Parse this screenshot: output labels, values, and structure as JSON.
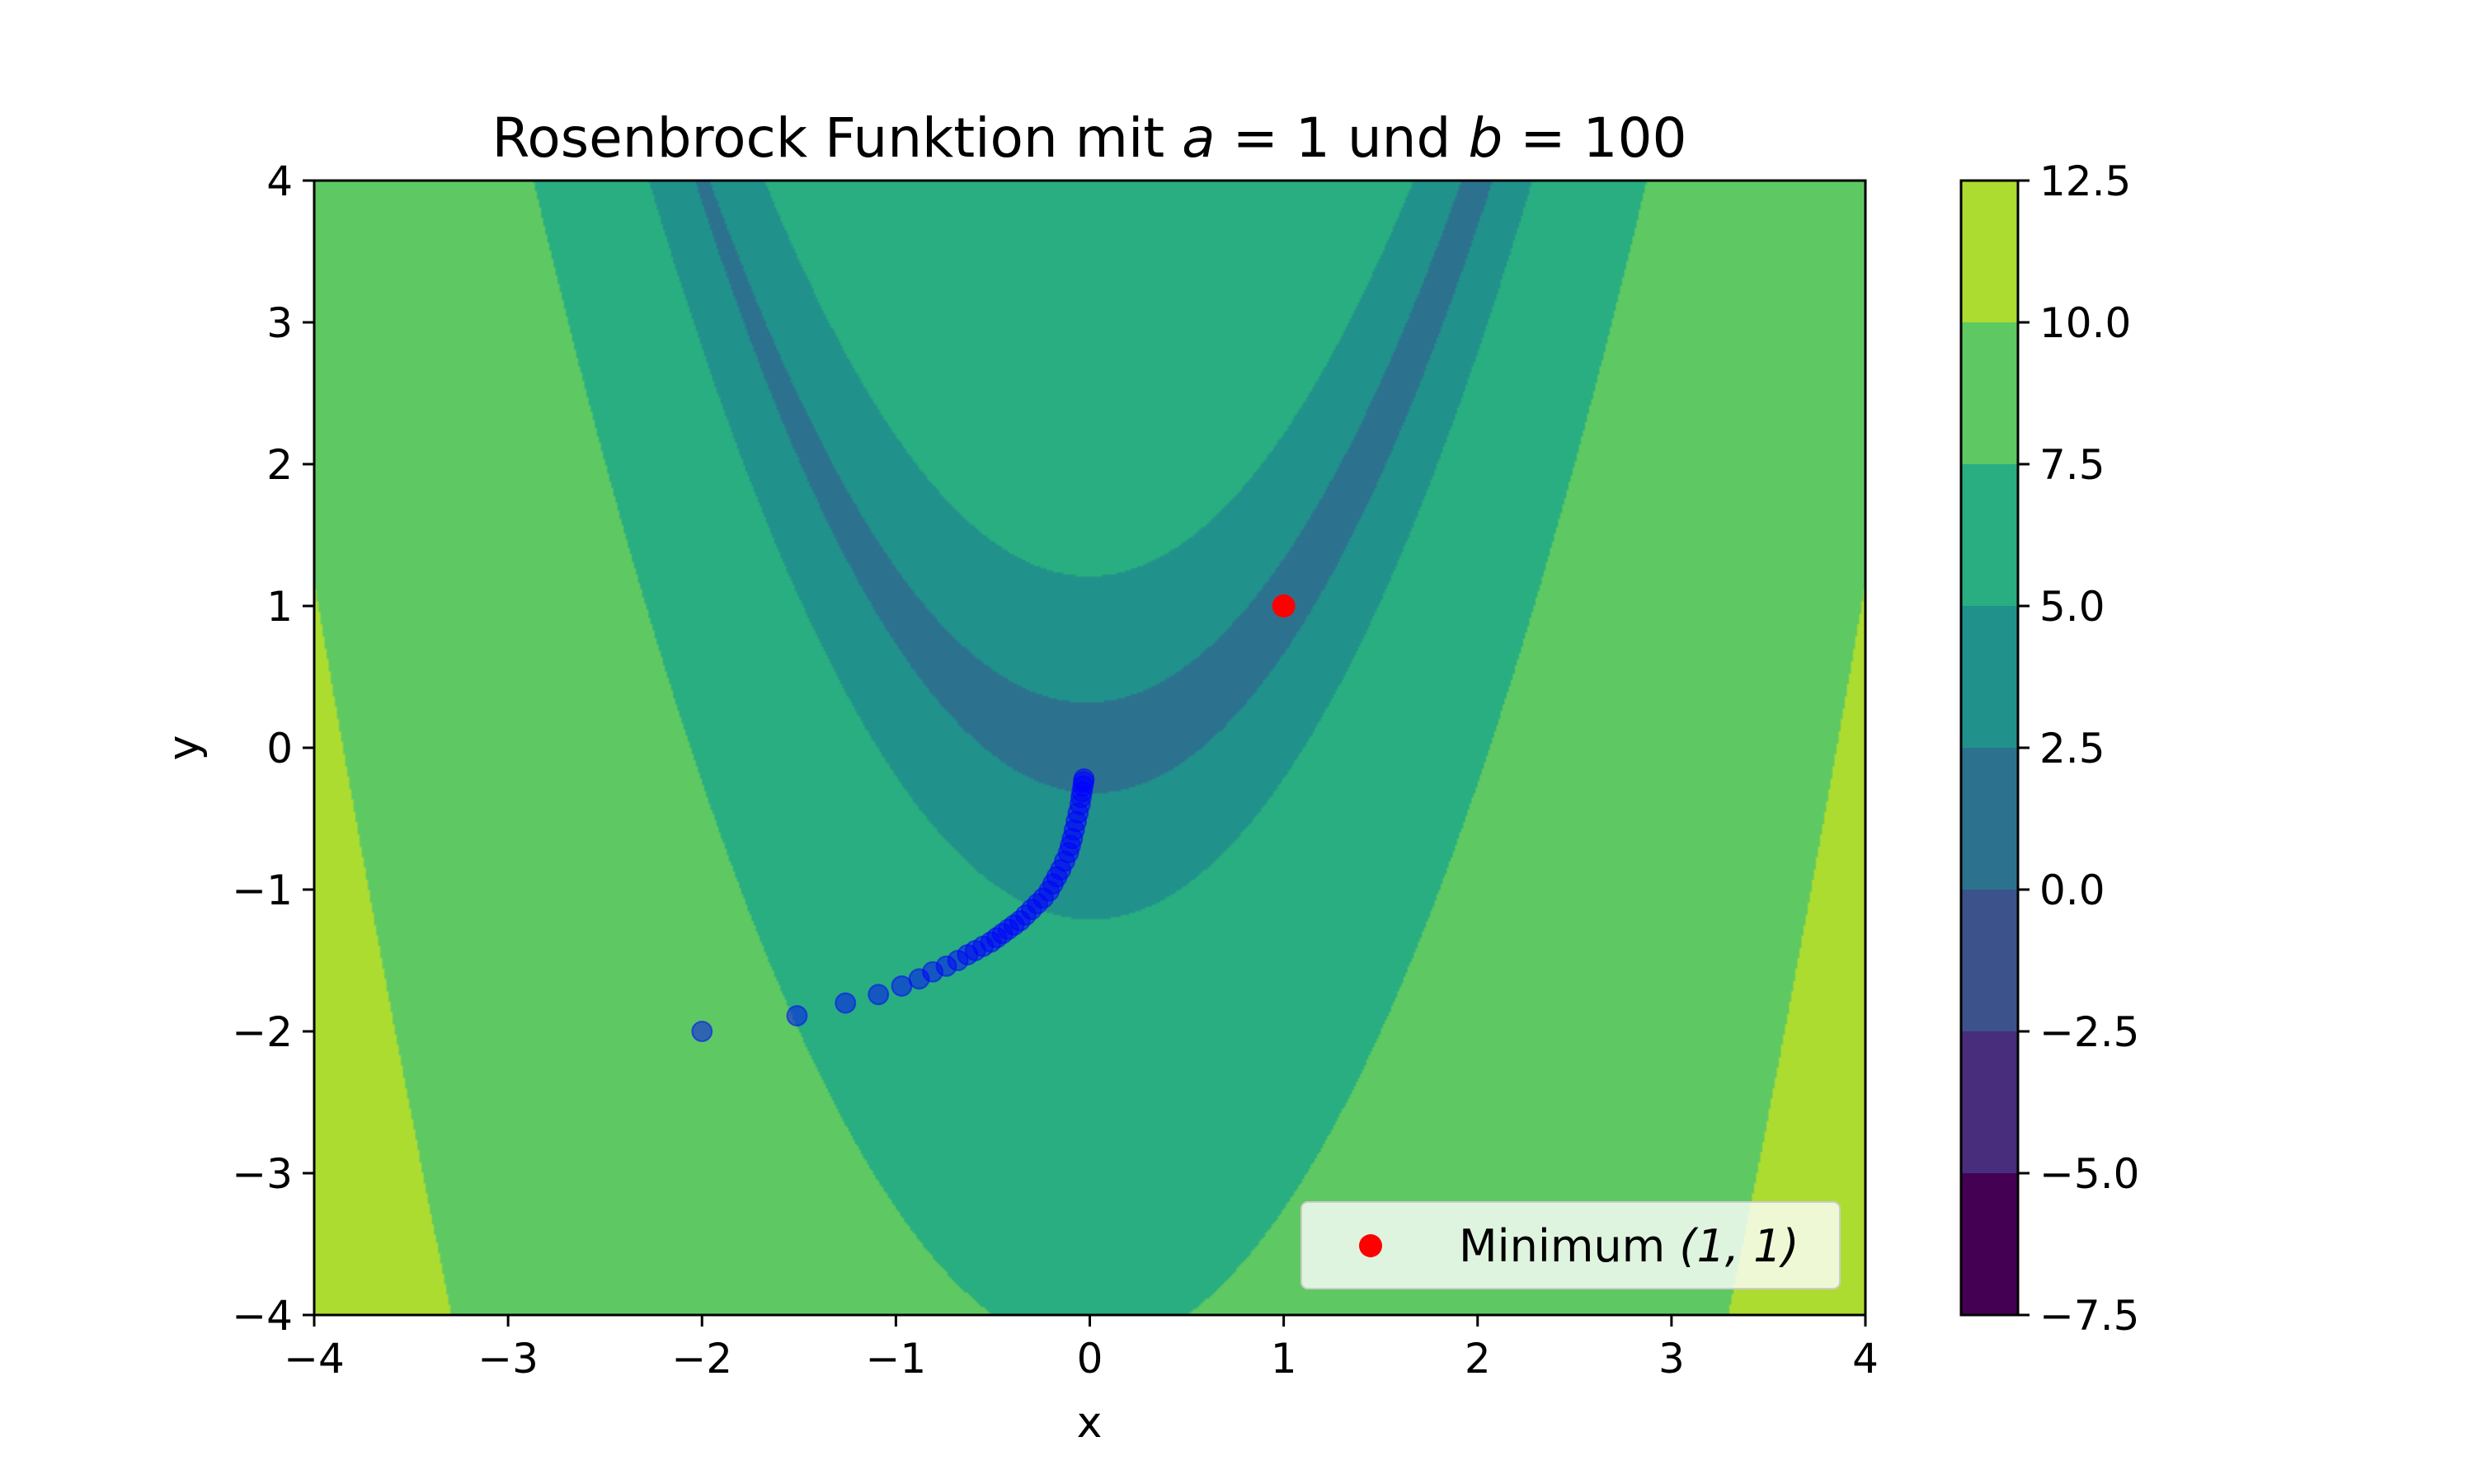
{
  "chart_data": {
    "type": "contour",
    "title": "Rosenbrock Funktion mit a = 1 und b = 100",
    "title_parts": [
      "Rosenbrock Funktion mit ",
      "a",
      " = 1 und ",
      "b",
      " = 100"
    ],
    "xlabel": "x",
    "ylabel": "y",
    "xlim": [
      -4,
      4
    ],
    "ylim": [
      -4,
      4
    ],
    "x_ticks": [
      -4,
      -3,
      -2,
      -1,
      0,
      1,
      2,
      3,
      4
    ],
    "y_ticks": [
      -4,
      -3,
      -2,
      -1,
      0,
      1,
      2,
      3,
      4
    ],
    "x_tick_labels": [
      "−4",
      "−3",
      "−2",
      "−1",
      "0",
      "1",
      "2",
      "3",
      "4"
    ],
    "y_tick_labels": [
      "−4",
      "−3",
      "−2",
      "−1",
      "0",
      "1",
      "2",
      "3",
      "4"
    ],
    "function": "log(1 + (1 − x)^2 + 100·(y − x^2)^2)",
    "contour_levels": [
      -7.5,
      -5.0,
      -2.5,
      0.0,
      2.5,
      5.0,
      7.5,
      10.0,
      12.5
    ],
    "colorbar": {
      "tick_values": [
        12.5,
        10.0,
        7.5,
        5.0,
        2.5,
        0.0,
        -2.5,
        -5.0,
        -7.5
      ],
      "tick_labels": [
        "12.5",
        "10.0",
        "7.5",
        "5.0",
        "2.5",
        "0.0",
        "−2.5",
        "−5.0",
        "−7.5"
      ],
      "band_colors": [
        "#440154",
        "#472d7b",
        "#3b528b",
        "#2c728e",
        "#21918c",
        "#28ae80",
        "#5ec962",
        "#addc30",
        "#fde725"
      ]
    },
    "colors": {
      "path_points": "#0000ff",
      "minimum": "#ff0000"
    },
    "series": [
      {
        "type": "scatter",
        "x": [
          -2.0,
          -1.51,
          -1.26,
          -1.09,
          -0.97,
          -0.88,
          -0.81,
          -0.74,
          -0.68,
          -0.63,
          -0.59,
          -0.55,
          -0.51,
          -0.48,
          -0.45,
          -0.42,
          -0.39,
          -0.36,
          -0.33,
          -0.3,
          -0.27,
          -0.24,
          -0.21,
          -0.19,
          -0.17,
          -0.15,
          -0.13,
          -0.11,
          -0.1,
          -0.09,
          -0.08,
          -0.07,
          -0.06,
          -0.05,
          -0.045,
          -0.04,
          -0.035,
          -0.032,
          -0.03
        ],
        "y": [
          -2.0,
          -1.89,
          -1.8,
          -1.74,
          -1.68,
          -1.63,
          -1.58,
          -1.54,
          -1.5,
          -1.46,
          -1.43,
          -1.4,
          -1.37,
          -1.34,
          -1.31,
          -1.28,
          -1.25,
          -1.22,
          -1.18,
          -1.14,
          -1.1,
          -1.06,
          -1.01,
          -0.96,
          -0.91,
          -0.86,
          -0.8,
          -0.74,
          -0.69,
          -0.64,
          -0.58,
          -0.52,
          -0.46,
          -0.4,
          -0.35,
          -0.31,
          -0.27,
          -0.24,
          -0.22
        ]
      },
      {
        "name": "Minimum (1, 1)",
        "legend_parts": [
          "Minimum ",
          "(1, 1)"
        ],
        "type": "scatter",
        "x": [
          1
        ],
        "y": [
          1
        ]
      }
    ],
    "legend_position": "lower right"
  }
}
